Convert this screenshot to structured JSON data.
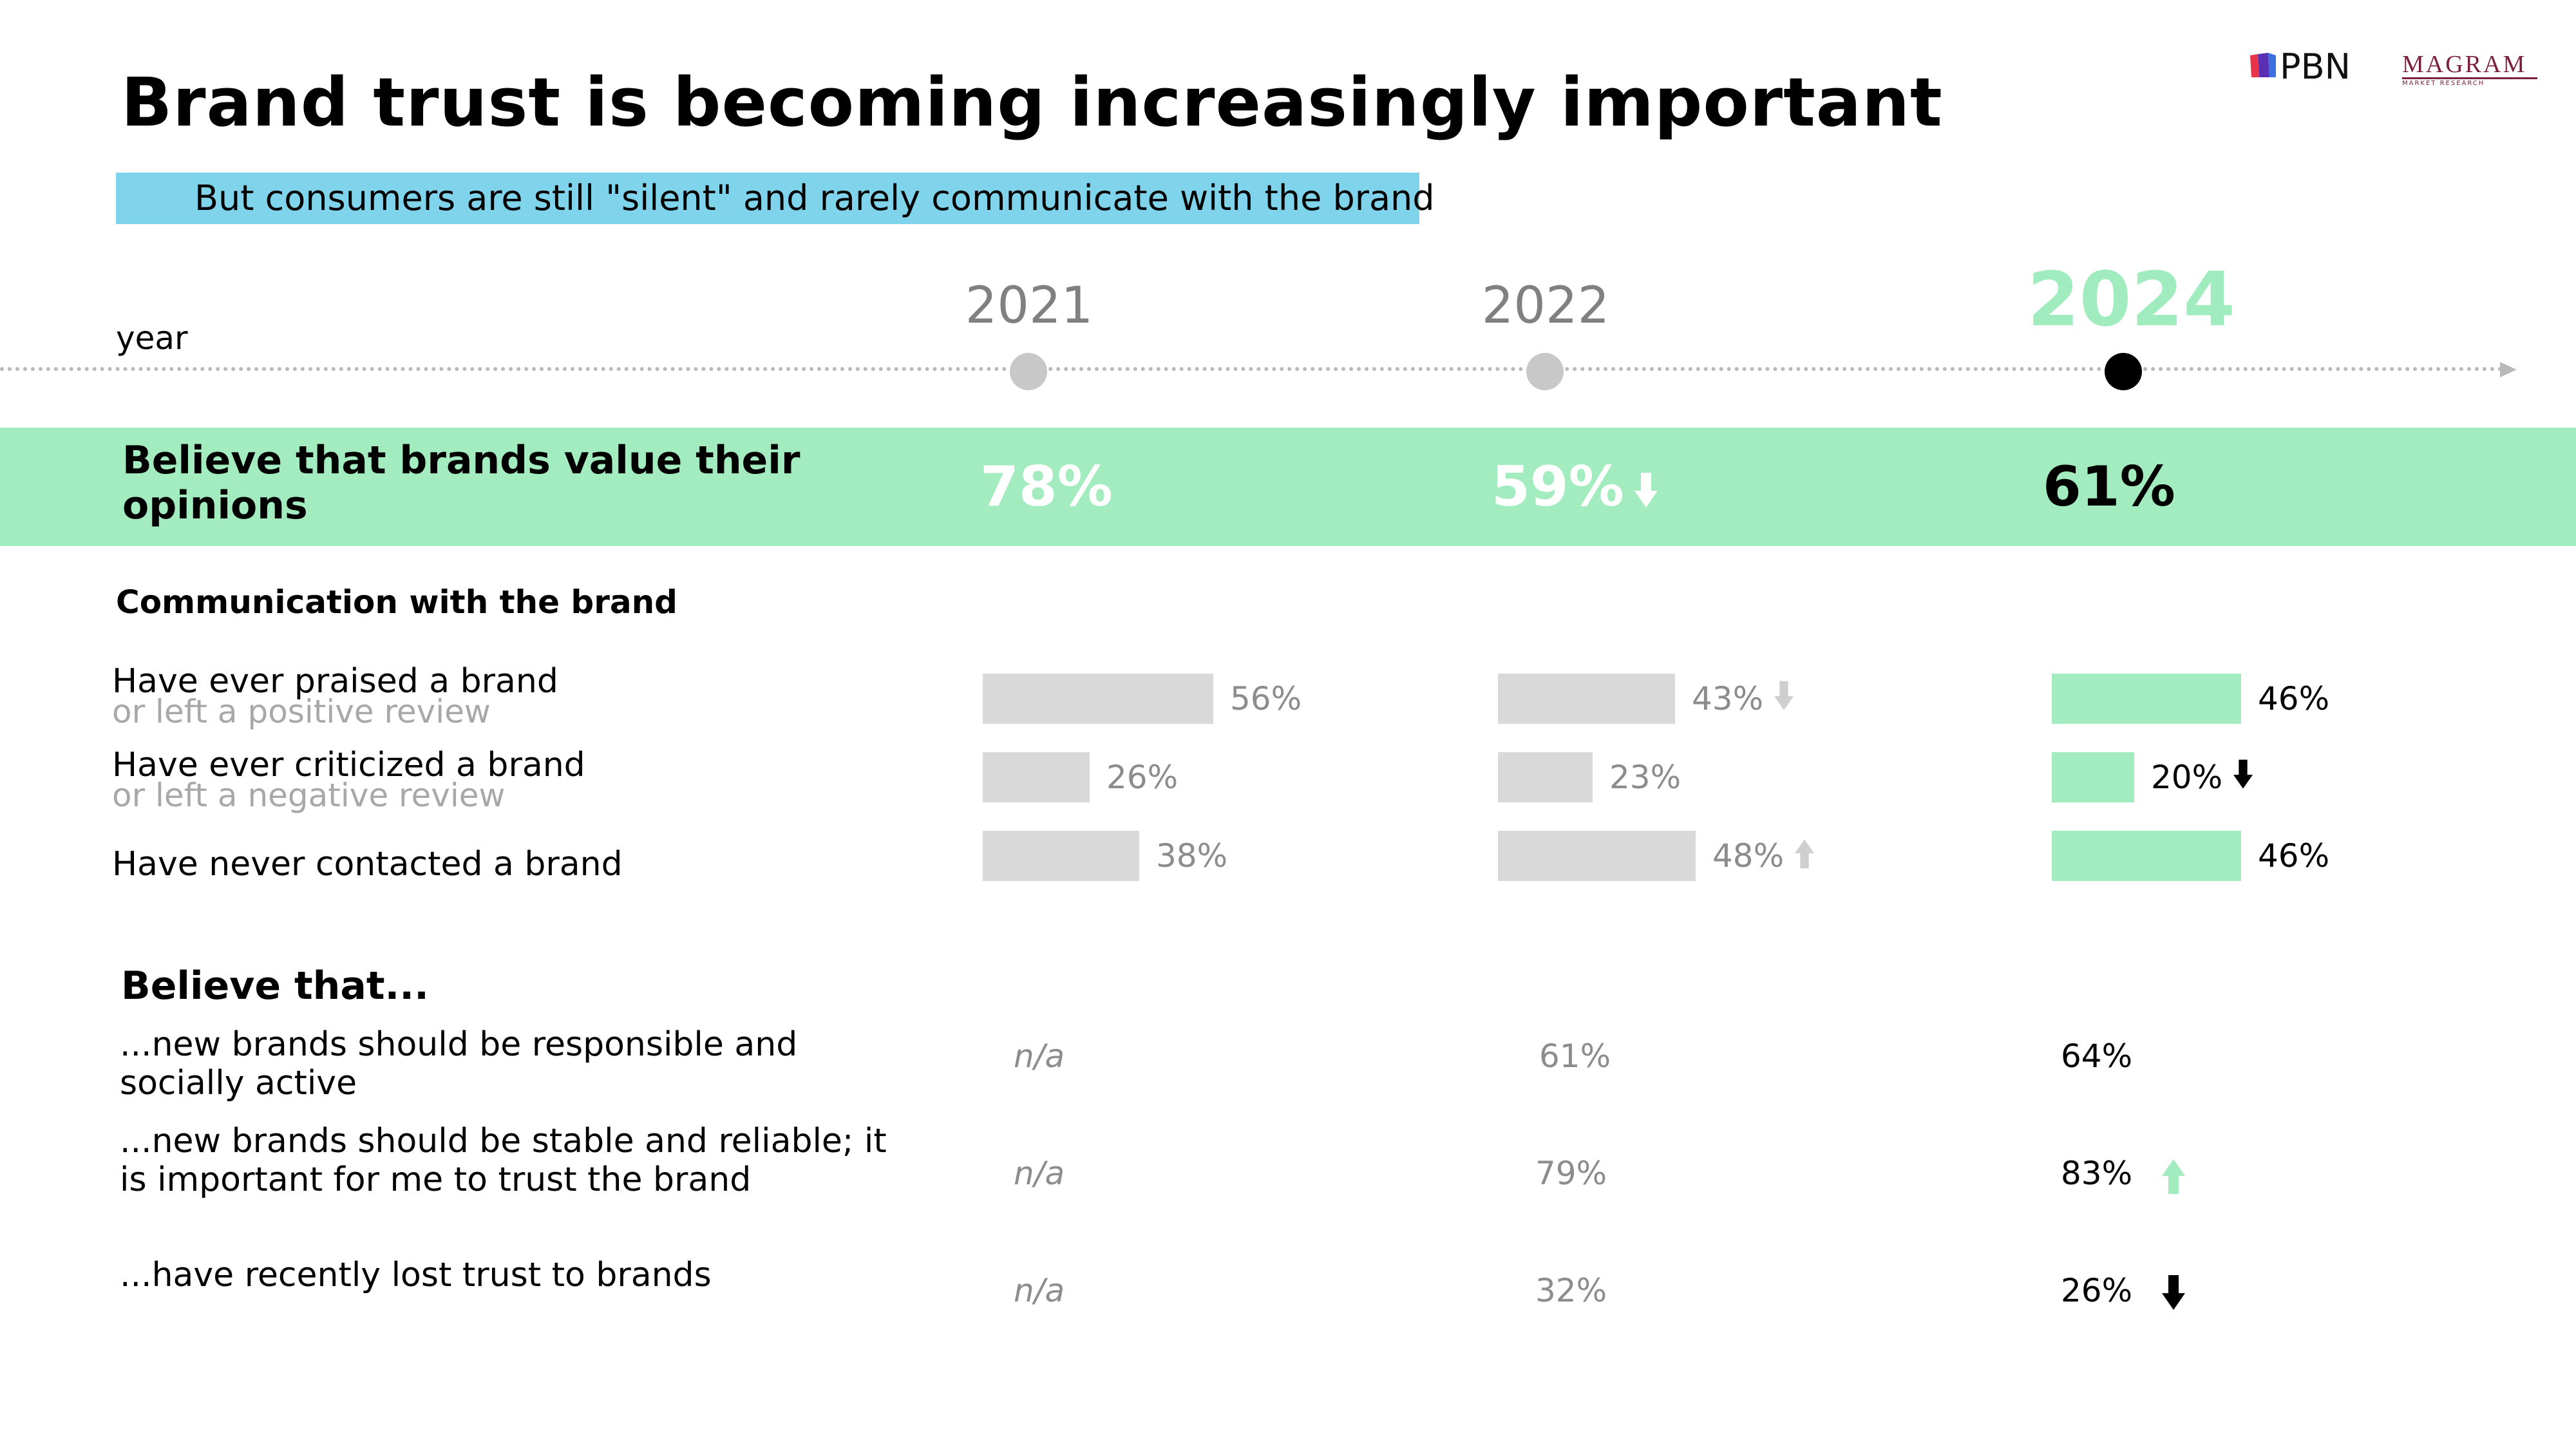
{
  "title": "Brand trust is becoming increasingly important",
  "subtitle": "But consumers are still \"silent\" and rarely communicate with the brand",
  "logos": {
    "pbn": "PBN",
    "magram": "MAGRAM",
    "magram_tag": "MARKET RESEARCH"
  },
  "timeline": {
    "label": "year",
    "years": [
      "2021",
      "2022",
      "2024"
    ]
  },
  "colors": {
    "accent_green": "#a2ecbf",
    "subtitle_blue": "#7fd3ea",
    "grey_bar": "#d9d9d9",
    "year_2024": "#a0ecbe"
  },
  "headline_metric": {
    "label": "Believe that brands value their opinions",
    "values": [
      "78%",
      "59%",
      "61%"
    ]
  },
  "communication": {
    "heading": "Communication with the brand",
    "rows": [
      {
        "main": "Have ever praised a brand",
        "sub": "or left a positive review",
        "values": [
          "56%",
          "43%",
          "46%"
        ]
      },
      {
        "main": "Have ever criticized a brand",
        "sub": "or left a negative review",
        "values": [
          "26%",
          "23%",
          "20%"
        ]
      },
      {
        "main": "Have never contacted a brand",
        "sub": "",
        "values": [
          "38%",
          "48%",
          "46%"
        ]
      }
    ]
  },
  "believe": {
    "heading": "Believe that...",
    "rows": [
      {
        "text": "...new brands should be responsible and socially active",
        "values": [
          "n/a",
          "61%",
          "64%"
        ]
      },
      {
        "text": "...new brands should be stable and reliable; it is important for me to trust the brand",
        "values": [
          "n/a",
          "79%",
          "83%"
        ]
      },
      {
        "text": "...have recently lost trust to brands",
        "values": [
          "n/a",
          "32%",
          "26%"
        ]
      }
    ]
  },
  "chart_data": {
    "type": "bar",
    "categories": [
      "Have ever praised a brand or left a positive review",
      "Have ever criticized a brand or left a negative review",
      "Have never contacted a brand"
    ],
    "series": [
      {
        "name": "2021",
        "values": [
          56,
          26,
          38
        ]
      },
      {
        "name": "2022",
        "values": [
          43,
          23,
          48
        ]
      },
      {
        "name": "2024",
        "values": [
          46,
          20,
          46
        ]
      }
    ],
    "title": "Communication with the brand",
    "xlabel": "",
    "ylabel": "",
    "ylim": [
      0,
      100
    ],
    "grid": false,
    "trend_arrows": {
      "2022": [
        "down",
        "",
        "up"
      ],
      "2024": [
        "",
        "down",
        ""
      ]
    }
  }
}
